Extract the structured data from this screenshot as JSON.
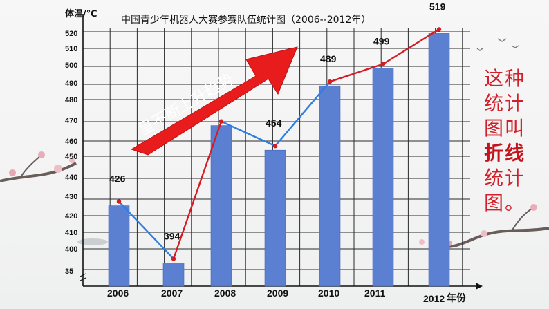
{
  "chart_data": {
    "type": "bar",
    "title": "中国青少年机器人大赛参赛队伍统计图（2006--2012年）",
    "ylabel": "体温/℃",
    "xlabel": "年份",
    "categories": [
      "2006",
      "2007",
      "2008",
      "2009",
      "2010",
      "2011",
      "2012"
    ],
    "values": [
      426,
      394,
      468,
      454,
      489,
      499,
      519
    ],
    "value_labels": [
      "426",
      "394",
      "",
      "454",
      "489",
      "499",
      "519"
    ],
    "y_ticks": [
      "35",
      "400",
      "410",
      "420",
      "430",
      "440",
      "450",
      "460",
      "470",
      "480",
      "490",
      "500",
      "510",
      "520"
    ],
    "ylim": [
      390,
      522
    ],
    "axis_break": true,
    "grid": true,
    "bar_color": "#5b7fd1",
    "annotation": "呈不断上升趋势",
    "arrow_color": "#e81c1c"
  },
  "side_note": {
    "part1": "这种统计图叫",
    "emph": "折线",
    "part2": "统计图。",
    "color": "#d0202a"
  }
}
